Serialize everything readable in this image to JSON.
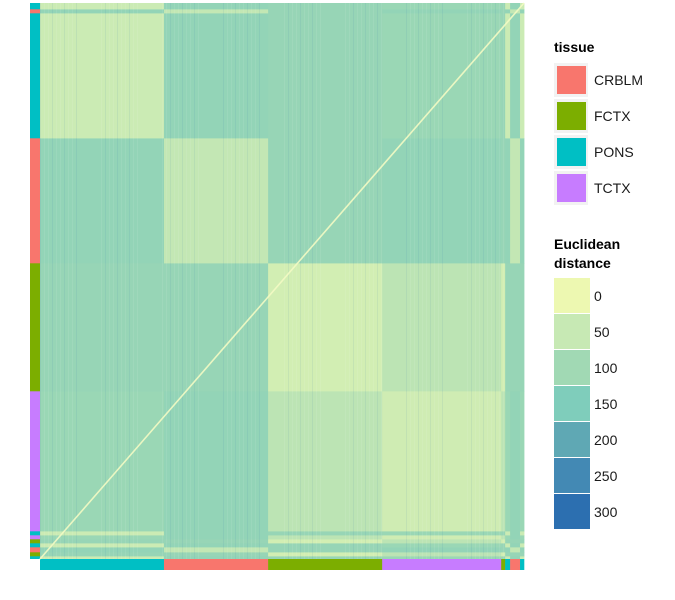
{
  "chart_data": {
    "type": "heatmap",
    "title": "",
    "xlabel": "",
    "ylabel": "",
    "sample_blocks_x": [
      {
        "tissue": "PONS",
        "count": 125
      },
      {
        "tissue": "CRBLM",
        "count": 105
      },
      {
        "tissue": "FCTX",
        "count": 115
      },
      {
        "tissue": "TCTX",
        "count": 120
      },
      {
        "tissue": "FCTX",
        "count": 4
      },
      {
        "tissue": "PONS",
        "count": 5
      },
      {
        "tissue": "CRBLM",
        "count": 10
      },
      {
        "tissue": "PONS",
        "count": 4
      }
    ],
    "sample_blocks_y": [
      {
        "tissue": "PONS",
        "count": 3
      },
      {
        "tissue": "FCTX",
        "count": 4
      },
      {
        "tissue": "CRBLM",
        "count": 5
      },
      {
        "tissue": "PONS",
        "count": 4
      },
      {
        "tissue": "FCTX",
        "count": 4
      },
      {
        "tissue": "TCTX",
        "count": 4
      },
      {
        "tissue": "PONS",
        "count": 4
      },
      {
        "tissue": "TCTX",
        "count": 140
      },
      {
        "tissue": "FCTX",
        "count": 128
      },
      {
        "tissue": "CRBLM",
        "count": 125
      },
      {
        "tissue": "PONS",
        "count": 125
      },
      {
        "tissue": "CRBLM",
        "count": 4
      },
      {
        "tissue": "PONS",
        "count": 6
      }
    ],
    "distance_between_tissues": {
      "CRBLM-CRBLM": 55,
      "CRBLM-FCTX": 115,
      "CRBLM-PONS": 120,
      "CRBLM-TCTX": 120,
      "FCTX-FCTX": 35,
      "FCTX-PONS": 115,
      "FCTX-TCTX": 65,
      "PONS-PONS": 45,
      "PONS-TCTX": 110,
      "TCTX-TCTX": 40
    },
    "legend": {
      "tissue": {
        "title": "tissue",
        "entries": [
          {
            "label": "CRBLM",
            "color": "#F8766D"
          },
          {
            "label": "FCTX",
            "color": "#7CAE00"
          },
          {
            "label": "PONS",
            "color": "#00BFC4"
          },
          {
            "label": "TCTX",
            "color": "#C77CFF"
          }
        ]
      },
      "distance": {
        "title_lines": [
          "Euclidean",
          "distance"
        ],
        "entries": [
          {
            "label": "0",
            "value": 0,
            "color": "#EDF8B1"
          },
          {
            "label": "50",
            "value": 50,
            "color": "#C7E9B4"
          },
          {
            "label": "100",
            "value": 100,
            "color": "#A1D9B4"
          },
          {
            "label": "150",
            "value": 150,
            "color": "#7FCDBB"
          },
          {
            "label": "200",
            "value": 200,
            "color": "#5FA8B4"
          },
          {
            "label": "250",
            "value": 250,
            "color": "#4389B4"
          },
          {
            "label": "300",
            "value": 300,
            "color": "#2C6FB0"
          }
        ]
      }
    },
    "legend_position": "right"
  }
}
